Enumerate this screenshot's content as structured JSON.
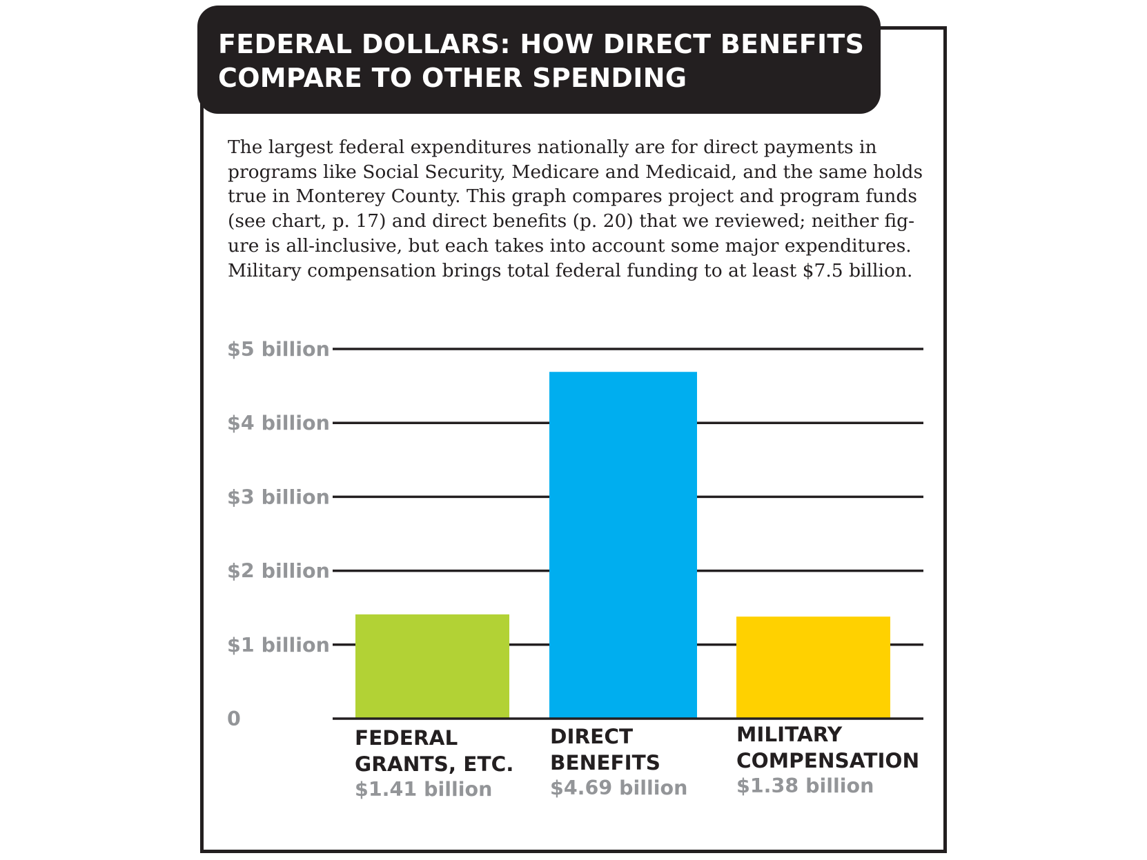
{
  "title": {
    "lines": [
      "FEDERAL DOLLARS: HOW DIRECT BENEFITS",
      "COMPARE TO OTHER SPENDING"
    ]
  },
  "description": {
    "lines": [
      "The largest federal expenditures nationally are for direct payments in",
      "programs like Social Security, Medicare and Medicaid, and the same holds",
      "true in Monterey County. This graph compares project and program funds",
      "(see chart, p. 17) and direct benefits (p. 20) that we reviewed; neither fig-",
      "ure is all-inclusive, but each takes into account some major expenditures.",
      "Military compensation brings total federal funding to at least $7.5 billion."
    ]
  },
  "chart_data": {
    "type": "bar",
    "title": "FEDERAL DOLLARS: HOW DIRECT BENEFITS COMPARE TO OTHER SPENDING",
    "xlabel": "",
    "ylabel": "",
    "ylim": [
      0,
      5
    ],
    "grid": true,
    "unit": "billion dollars",
    "yticks": [
      {
        "value": 0,
        "label": "0"
      },
      {
        "value": 1,
        "label": "$1 billion"
      },
      {
        "value": 2,
        "label": "$2 billion"
      },
      {
        "value": 3,
        "label": "$3 billion"
      },
      {
        "value": 4,
        "label": "$4 billion"
      },
      {
        "value": 5,
        "label": "$5 billion"
      }
    ],
    "categories": [
      "FEDERAL GRANTS, ETC.",
      "DIRECT BENEFITS",
      "MILITARY COMPENSATION"
    ],
    "category_label_lines": [
      [
        "FEDERAL",
        "GRANTS, ETC."
      ],
      [
        "DIRECT",
        "BENEFITS"
      ],
      [
        "MILITARY",
        "COMPENSATION"
      ]
    ],
    "values": [
      1.41,
      4.69,
      1.38
    ],
    "value_labels": [
      "$1.41 billion",
      "$4.69 billion",
      "$1.38 billion"
    ],
    "colors": [
      "#b2d235",
      "#00aeef",
      "#ffd100"
    ]
  },
  "colors": {
    "frame": "#231f20",
    "title_bg": "#231f20",
    "title_text": "#ffffff",
    "tick_text": "#939598",
    "gridline": "#231f20"
  }
}
